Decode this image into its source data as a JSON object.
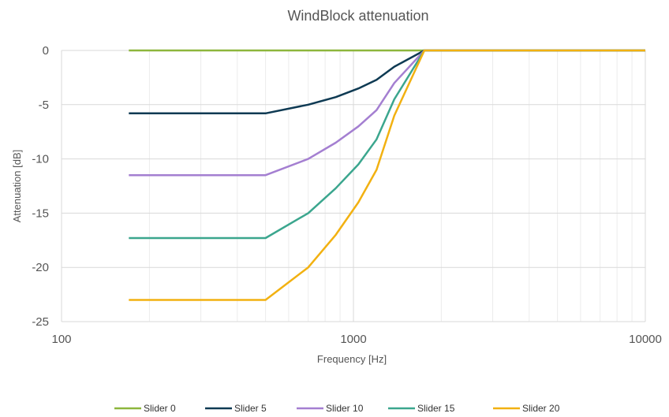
{
  "chart_data": {
    "type": "line",
    "title": "WindBlock attenuation",
    "xlabel": "Frequency [Hz]",
    "ylabel": "Attenuation [dB]",
    "x_scale": "log",
    "xlim": [
      100,
      10000
    ],
    "ylim": [
      -25,
      0
    ],
    "x_ticks": [
      "100",
      "1000",
      "10000"
    ],
    "y_ticks": [
      "0",
      "-5",
      "-10",
      "-15",
      "-20",
      "-25"
    ],
    "grid": true,
    "legend_position": "bottom",
    "x": [
      170,
      500,
      700,
      870,
      1040,
      1200,
      1380,
      1750,
      10000
    ],
    "series": [
      {
        "name": "Slider 0",
        "color": "#8DB63C",
        "values": [
          0,
          0,
          0,
          0,
          0,
          0,
          0,
          0,
          0
        ]
      },
      {
        "name": "Slider 5",
        "color": "#0E3A53",
        "values": [
          -5.8,
          -5.8,
          -5.0,
          -4.3,
          -3.5,
          -2.7,
          -1.5,
          0,
          0
        ]
      },
      {
        "name": "Slider 10",
        "color": "#A47FD1",
        "values": [
          -11.5,
          -11.5,
          -10.0,
          -8.5,
          -7.0,
          -5.5,
          -3.0,
          0,
          0
        ]
      },
      {
        "name": "Slider 15",
        "color": "#3BA68E",
        "values": [
          -17.3,
          -17.3,
          -15.0,
          -12.7,
          -10.5,
          -8.2,
          -4.5,
          0,
          0
        ]
      },
      {
        "name": "Slider 20",
        "color": "#F2B111",
        "values": [
          -23.0,
          -23.0,
          -20.0,
          -17.0,
          -14.0,
          -11.0,
          -6.0,
          0,
          0
        ]
      }
    ]
  }
}
